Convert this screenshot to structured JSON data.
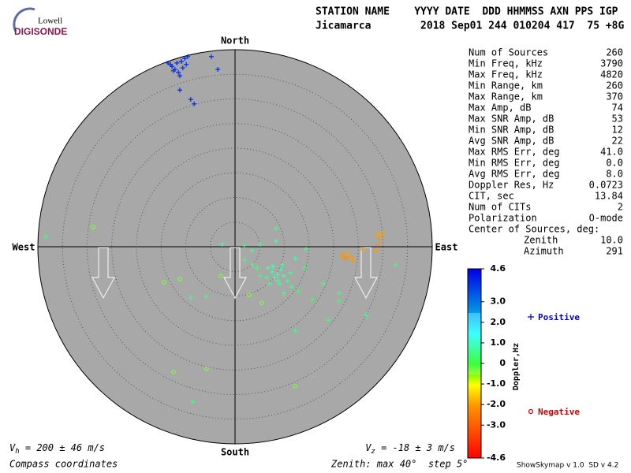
{
  "header": {
    "logo_top": "Lowell",
    "logo_bottom": "DIGISONDE",
    "line1": "STATION NAME    YYYY DATE  DDD HHMMSS AXN PPS IGP",
    "line2": "Jicamarca        2018 Sep01 244 010204 417  75 +8G"
  },
  "stats": [
    {
      "label": "Num of Sources",
      "value": "260"
    },
    {
      "label": "Min Freq, kHz",
      "value": "3790"
    },
    {
      "label": "Max Freq, kHz",
      "value": "4820"
    },
    {
      "label": "Min Range, km",
      "value": "260"
    },
    {
      "label": "Max Range, km",
      "value": "370"
    },
    {
      "label": "Max Amp, dB",
      "value": "74"
    },
    {
      "label": "Max SNR Amp, dB",
      "value": "53"
    },
    {
      "label": "Min SNR Amp, dB",
      "value": "12"
    },
    {
      "label": "Avg SNR Amp, dB",
      "value": "22"
    },
    {
      "label": "Max RMS Err, deg",
      "value": "41.0"
    },
    {
      "label": "Min RMS Err, deg",
      "value": "0.0"
    },
    {
      "label": "Avg RMS Err, deg",
      "value": "8.0"
    },
    {
      "label": "Doppler Res, Hz",
      "value": "0.0723"
    },
    {
      "label": "CIT, sec",
      "value": "13.84"
    },
    {
      "label": "Num of CITs",
      "value": "2"
    },
    {
      "label": "Polarization",
      "value": "O-mode"
    }
  ],
  "center": {
    "title": "Center of Sources, deg:",
    "zenith": {
      "label": "Zenith",
      "value": "10.0"
    },
    "azimuth": {
      "label": "Azimuth",
      "value": "291"
    }
  },
  "skymap": {
    "north": "North",
    "south": "South",
    "west": "West",
    "east": "East",
    "sources": [
      {
        "east": -13.6,
        "north": 37.3,
        "doppler": 4.0
      },
      {
        "east": -12.8,
        "north": 36.6,
        "doppler": 4.1
      },
      {
        "east": -12.2,
        "north": 36.0,
        "doppler": 3.9
      },
      {
        "east": -11.5,
        "north": 35.4,
        "doppler": 4.0
      },
      {
        "east": -10.9,
        "north": 37.6,
        "doppler": 4.2
      },
      {
        "east": -10.2,
        "north": 38.2,
        "doppler": 4.0
      },
      {
        "east": -9.6,
        "north": 38.6,
        "doppler": 3.8
      },
      {
        "east": -11.2,
        "north": 34.7,
        "doppler": 4.1
      },
      {
        "east": -10.6,
        "north": 36.3,
        "doppler": 4.0
      },
      {
        "east": -12.5,
        "north": 35.7,
        "doppler": 3.9
      },
      {
        "east": -13.1,
        "north": 37.0,
        "doppler": 4.0
      },
      {
        "east": -11.8,
        "north": 37.3,
        "doppler": 4.1
      },
      {
        "east": -9.9,
        "north": 37.0,
        "doppler": 4.0
      },
      {
        "east": -4.8,
        "north": 38.6,
        "doppler": 3.9
      },
      {
        "east": -3.5,
        "north": 36.0,
        "doppler": 4.0
      },
      {
        "east": -11.2,
        "north": 31.8,
        "doppler": 4.1
      },
      {
        "east": -9.0,
        "north": 29.9,
        "doppler": 4.0
      },
      {
        "east": -8.3,
        "north": 29.0,
        "doppler": 3.9
      },
      {
        "east": 21.4,
        "north": -1.6,
        "doppler": -2.0
      },
      {
        "east": 22.1,
        "north": -1.9,
        "doppler": -2.1
      },
      {
        "east": 22.7,
        "north": -1.4,
        "doppler": -1.9
      },
      {
        "east": 23.4,
        "north": -2.1,
        "doppler": -2.0
      },
      {
        "east": 22.4,
        "north": -2.4,
        "doppler": -2.2
      },
      {
        "east": 25.9,
        "north": -0.5,
        "doppler": -1.8
      },
      {
        "east": 24.0,
        "north": -2.7,
        "doppler": -2.0
      },
      {
        "east": 28.8,
        "north": 2.4,
        "doppler": -1.9
      },
      {
        "east": 29.4,
        "north": 1.8,
        "doppler": -2.0
      },
      {
        "east": 29.1,
        "north": 0.5,
        "doppler": -2.1
      },
      {
        "east": 28.5,
        "north": -0.8,
        "doppler": -2.0
      },
      {
        "east": 29.8,
        "north": 2.7,
        "doppler": -1.9
      },
      {
        "east": -38.4,
        "north": 2.1,
        "doppler": 0.4
      },
      {
        "east": -28.8,
        "north": 4.0,
        "doppler": -0.3
      },
      {
        "east": -14.4,
        "north": -7.2,
        "doppler": -0.3
      },
      {
        "east": -11.2,
        "north": -6.6,
        "doppler": -0.3
      },
      {
        "east": -9.0,
        "north": -10.4,
        "doppler": 0.5
      },
      {
        "east": -5.8,
        "north": -10.1,
        "doppler": 0.4
      },
      {
        "east": -12.5,
        "north": -25.4,
        "doppler": -0.3
      },
      {
        "east": -5.8,
        "north": -24.8,
        "doppler": -0.3
      },
      {
        "east": -8.6,
        "north": -31.5,
        "doppler": 0.5
      },
      {
        "east": 12.2,
        "north": -28.3,
        "doppler": -0.3
      },
      {
        "east": 12.2,
        "north": -17.1,
        "doppler": 0.4
      },
      {
        "east": 18.9,
        "north": -14.9,
        "doppler": 0.3
      },
      {
        "east": 21.1,
        "north": -9.4,
        "doppler": 0.5
      },
      {
        "east": 21.1,
        "north": -11.0,
        "doppler": 0.4
      },
      {
        "east": 26.6,
        "north": -13.9,
        "doppler": 0.6
      },
      {
        "east": 32.6,
        "north": -3.7,
        "doppler": 0.4
      },
      {
        "east": -2.9,
        "north": -5.9,
        "doppler": -0.3
      },
      {
        "east": -2.6,
        "north": 0.5,
        "doppler": 0.5
      },
      {
        "east": 1.9,
        "north": 0.2,
        "doppler": 0.4
      },
      {
        "east": 3.5,
        "north": -0.8,
        "doppler": 0.6
      },
      {
        "east": 5.1,
        "north": 0.5,
        "doppler": 0.5
      },
      {
        "east": 8.3,
        "north": 3.7,
        "doppler": 0.4
      },
      {
        "east": 8.3,
        "north": 1.1,
        "doppler": 0.7
      },
      {
        "east": 14.4,
        "north": -0.5,
        "doppler": 0.5
      },
      {
        "east": 12.2,
        "north": -2.4,
        "doppler": 0.8
      },
      {
        "east": 14.1,
        "north": -4.3,
        "doppler": 0.4
      },
      {
        "east": 17.9,
        "north": -7.5,
        "doppler": 0.5
      },
      {
        "east": 15.7,
        "north": -10.7,
        "doppler": 0.3
      },
      {
        "east": 9.9,
        "north": -9.4,
        "doppler": 0.5
      },
      {
        "east": 12.8,
        "north": -9.1,
        "doppler": 0.4
      },
      {
        "east": 5.4,
        "north": -11.4,
        "doppler": -0.3
      },
      {
        "east": 2.9,
        "north": -9.8,
        "doppler": -0.3
      },
      {
        "east": 6.7,
        "north": -4.3,
        "doppler": 0.8
      },
      {
        "east": 7.5,
        "north": -5.1,
        "doppler": 0.7
      },
      {
        "east": 8.6,
        "north": -5.6,
        "doppler": 0.9
      },
      {
        "east": 9.3,
        "north": -4.6,
        "doppler": 0.8
      },
      {
        "east": 9.9,
        "north": -5.9,
        "doppler": 0.7
      },
      {
        "east": 8.0,
        "north": -6.2,
        "doppler": 0.8
      },
      {
        "east": 10.6,
        "north": -6.9,
        "doppler": 0.6
      },
      {
        "east": 7.0,
        "north": -7.5,
        "doppler": 0.5
      },
      {
        "east": 11.5,
        "north": -8.2,
        "doppler": 0.5
      },
      {
        "east": 5.1,
        "north": -5.9,
        "doppler": 0.4
      },
      {
        "east": 9.1,
        "north": -7.5,
        "doppler": 0.6
      },
      {
        "east": 3.5,
        "north": -3.7,
        "doppler": 0.5
      },
      {
        "east": 4.5,
        "north": -4.3,
        "doppler": 0.4
      },
      {
        "east": 1.9,
        "north": -2.7,
        "doppler": 0.5
      },
      {
        "east": 7.7,
        "north": -4.0,
        "doppler": 0.9
      },
      {
        "east": 9.6,
        "north": -3.7,
        "doppler": 0.8
      },
      {
        "east": 8.6,
        "north": -6.9,
        "doppler": 0.7
      },
      {
        "east": 11.2,
        "north": -5.3,
        "doppler": 0.6
      },
      {
        "east": 6.4,
        "north": -6.2,
        "doppler": 0.7
      }
    ]
  },
  "colorbar": {
    "label": "Doppler,Hz",
    "ticks": [
      4.6,
      {
        "value": 3,
        "label": "3.0"
      },
      {
        "value": 2,
        "label": "2.0"
      },
      {
        "value": 1,
        "label": "1.0"
      },
      0,
      {
        "value": -1,
        "label": "-1.0"
      },
      {
        "value": -2,
        "label": "-2.0"
      },
      {
        "value": -3,
        "label": "-3.0"
      },
      -4.6
    ]
  },
  "legend": {
    "positive": "Positive",
    "negative": "Negative"
  },
  "footer": {
    "vh_symbol": "V",
    "vh_sub": "h",
    "vh_text": " = 200 ± 46 m/s",
    "vz_symbol": "V",
    "vz_sub": "z",
    "vz_text": " = -18 ± 3 m/s",
    "coords": "Compass coordinates",
    "zenith": "Zenith: max 40°  step 5°",
    "version": "ShowSkymap v 1.0  SD v 4.2"
  }
}
